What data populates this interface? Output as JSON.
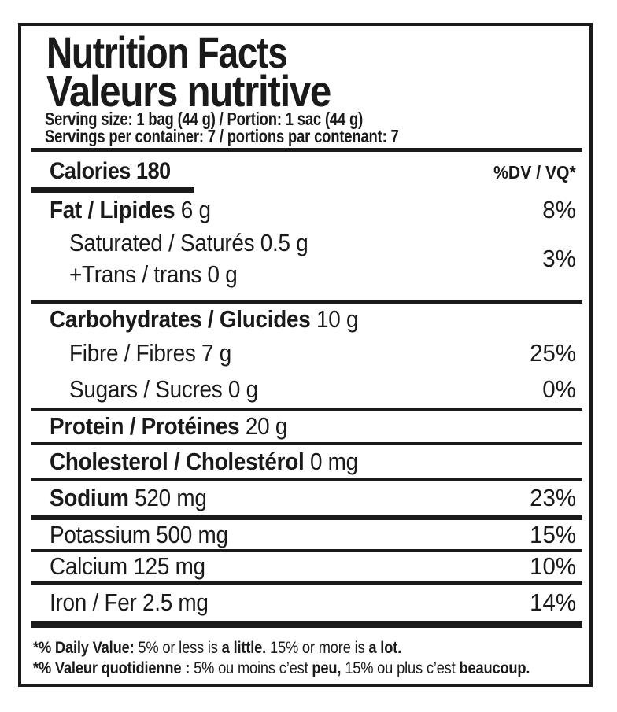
{
  "colors": {
    "text": "#1a1a1a",
    "background": "#ffffff"
  },
  "label": {
    "title_en": "Nutrition Facts",
    "title_fr": "Valeurs nutritive",
    "serving_size": "Serving size: 1 bag (44 g) / Portion: 1 sac (44 g)",
    "servings_per_container": "Servings per container: 7 / portions par contenant: 7",
    "calories": "Calories 180",
    "dv_header": "%DV / VQ*",
    "rows": [
      {
        "name": "Fat / Lipides",
        "value": " 6 g",
        "dv": "8%"
      },
      {
        "name": "Saturated / Saturés",
        "value": " 0.5 g",
        "dv": "3%"
      },
      {
        "name": "+Trans / trans",
        "value": " 0 g",
        "dv": ""
      },
      {
        "name": "Carbohydrates / Glucides",
        "value": " 10 g",
        "dv": ""
      },
      {
        "name": "Fibre / Fibres",
        "value": " 7 g",
        "dv": "25%"
      },
      {
        "name": "Sugars / Sucres",
        "value": " 0 g",
        "dv": "0%"
      },
      {
        "name": "Protein / Protéines",
        "value": " 20 g",
        "dv": ""
      },
      {
        "name": "Cholesterol / Cholestérol",
        "value": " 0 mg",
        "dv": ""
      },
      {
        "name": "Sodium",
        "value": " 520 mg",
        "dv": "23%"
      },
      {
        "name": "Potassium",
        "value": " 500 mg",
        "dv": "15%"
      },
      {
        "name": "Calcium",
        "value": " 125 mg",
        "dv": "10%"
      },
      {
        "name": "Iron / Fer",
        "value": " 2.5 mg",
        "dv": "14%"
      }
    ],
    "footnote_en": {
      "b1": "*% Daily Value:",
      "r1": " 5% or less is ",
      "b2": "a little.",
      "r2": " 15% or more is ",
      "b3": "a lot."
    },
    "footnote_fr": {
      "b1": "*% Valeur quotidienne :",
      "r1": " 5% ou moins c’est ",
      "b2": "peu,",
      "r2": " 15% ou plus c’est ",
      "b3": "beaucoup."
    }
  }
}
